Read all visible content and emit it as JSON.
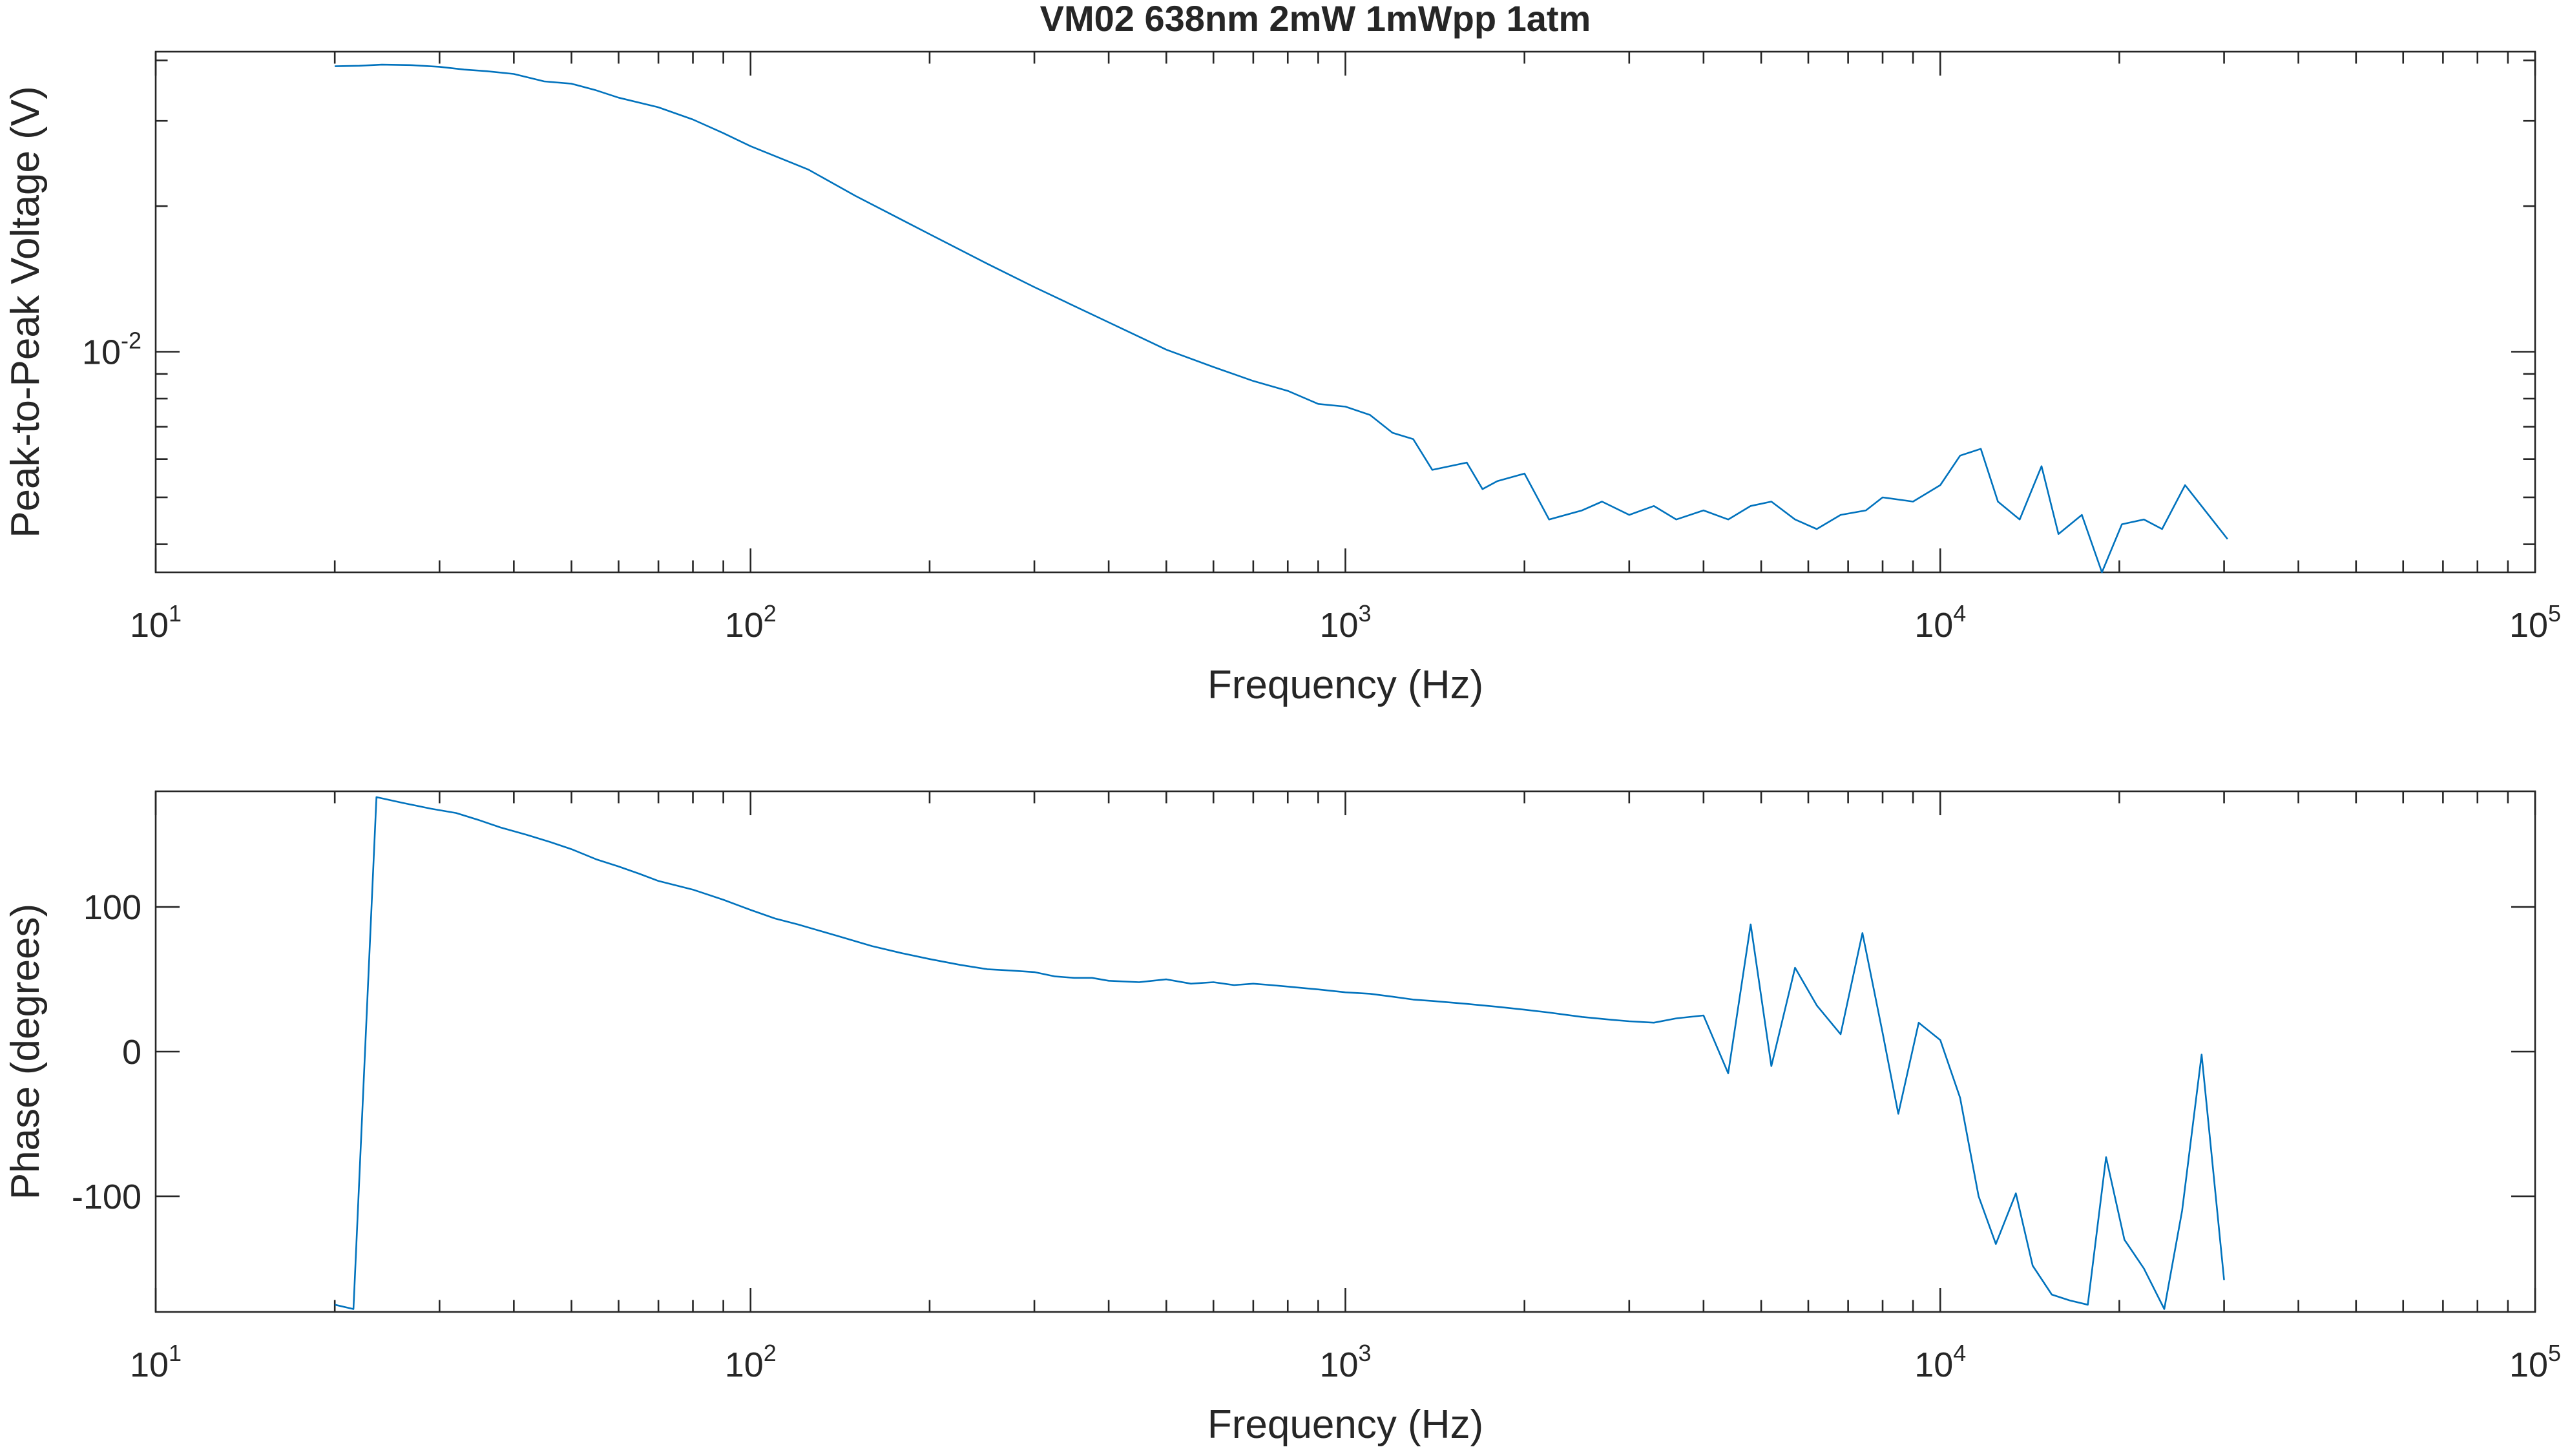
{
  "figure": {
    "title": "VM02 638nm 2mW 1mWpp 1atm"
  },
  "colors": {
    "series": "#0072BD",
    "axes": "#262626",
    "background": "#ffffff"
  },
  "chart_data": [
    {
      "type": "line",
      "xscale": "log",
      "yscale": "log",
      "xlabel": "Frequency (Hz)",
      "ylabel": "Peak-to-Peak Voltage (V)",
      "xlim": [
        10,
        100000
      ],
      "ylim": [
        0.0035,
        0.0417
      ],
      "xticks": [
        {
          "value": 10,
          "base": "10",
          "exp": "1"
        },
        {
          "value": 100,
          "base": "10",
          "exp": "2"
        },
        {
          "value": 1000,
          "base": "10",
          "exp": "3"
        },
        {
          "value": 10000,
          "base": "10",
          "exp": "4"
        },
        {
          "value": 100000,
          "base": "10",
          "exp": "5"
        }
      ],
      "yticks": [
        {
          "value": 0.01,
          "base": "10",
          "exp": "-2"
        }
      ],
      "grid": false,
      "series": [
        {
          "x": [
            20,
            22,
            24,
            27,
            30,
            33,
            36,
            40,
            45,
            50,
            55,
            60,
            70,
            80,
            90,
            100,
            125,
            150,
            200,
            250,
            300,
            400,
            500,
            600,
            700,
            800,
            900,
            1000,
            1100,
            1200,
            1300,
            1400,
            1600,
            1700,
            1800,
            2000,
            2200,
            2500,
            2700,
            3000,
            3300,
            3600,
            4000,
            4400,
            4800,
            5200,
            5700,
            6200,
            6800,
            7500,
            8000,
            9000,
            10000,
            10800,
            11700,
            12500,
            13600,
            14800,
            15800,
            17300,
            18700,
            20200,
            22000,
            23600,
            25800,
            30400
          ],
          "y": [
            0.0389,
            0.039,
            0.0392,
            0.0391,
            0.0388,
            0.0383,
            0.038,
            0.0375,
            0.0362,
            0.0358,
            0.0347,
            0.0335,
            0.032,
            0.0302,
            0.0283,
            0.0266,
            0.0238,
            0.021,
            0.0175,
            0.0152,
            0.0136,
            0.0115,
            0.0101,
            0.0093,
            0.0087,
            0.0083,
            0.0078,
            0.0077,
            0.0074,
            0.0068,
            0.0066,
            0.0057,
            0.0059,
            0.0052,
            0.0054,
            0.0056,
            0.0045,
            0.0047,
            0.0049,
            0.0046,
            0.0048,
            0.0045,
            0.0047,
            0.0045,
            0.0048,
            0.0049,
            0.0045,
            0.0043,
            0.0046,
            0.0047,
            0.005,
            0.0049,
            0.0053,
            0.0061,
            0.0063,
            0.0049,
            0.0045,
            0.0058,
            0.0042,
            0.0046,
            0.0035,
            0.0044,
            0.0045,
            0.0043,
            0.0053,
            0.0041
          ]
        }
      ]
    },
    {
      "type": "line",
      "xscale": "log",
      "yscale": "linear",
      "xlabel": "Frequency (Hz)",
      "ylabel": "Phase (degrees)",
      "xlim": [
        10,
        100000
      ],
      "ylim": [
        -180,
        180
      ],
      "xticks": [
        {
          "value": 10,
          "base": "10",
          "exp": "1"
        },
        {
          "value": 100,
          "base": "10",
          "exp": "2"
        },
        {
          "value": 1000,
          "base": "10",
          "exp": "3"
        },
        {
          "value": 10000,
          "base": "10",
          "exp": "4"
        },
        {
          "value": 100000,
          "base": "10",
          "exp": "5"
        }
      ],
      "yticks": [
        {
          "value": -100,
          "label": "-100"
        },
        {
          "value": 0,
          "label": "0"
        },
        {
          "value": 100,
          "label": "100"
        }
      ],
      "grid": false,
      "series": [
        {
          "x": [
            20,
            21.5,
            23.5,
            26,
            29,
            32,
            35,
            38,
            42,
            46,
            50,
            55,
            60,
            65,
            70,
            80,
            90,
            100,
            110,
            120,
            140,
            160,
            180,
            200,
            225,
            250,
            275,
            300,
            325,
            350,
            375,
            400,
            450,
            500,
            550,
            600,
            650,
            700,
            750,
            800,
            900,
            1000,
            1100,
            1200,
            1300,
            1400,
            1600,
            1800,
            2000,
            2200,
            2500,
            2800,
            3000,
            3300,
            3600,
            4000,
            4400,
            4800,
            5200,
            5700,
            6200,
            6800,
            7400,
            8000,
            8500,
            9200,
            10000,
            10800,
            11600,
            12400,
            13400,
            14300,
            15400,
            16500,
            17700,
            19000,
            20400,
            22000,
            23800,
            25500,
            27500,
            30000
          ],
          "y": [
            -175,
            -178,
            176,
            172,
            168,
            165,
            160,
            155,
            150,
            145,
            140,
            133,
            128,
            123,
            118,
            112,
            105,
            98,
            92,
            88,
            80,
            73,
            68,
            64,
            60,
            57,
            56,
            55,
            52,
            51,
            51,
            49,
            48,
            50,
            47,
            48,
            46,
            47,
            46,
            45,
            43,
            41,
            40,
            38,
            36,
            35,
            33,
            31,
            29,
            27,
            24,
            22,
            21,
            20,
            23,
            25,
            -15,
            88,
            -10,
            58,
            32,
            12,
            82,
            13,
            -43,
            20,
            8,
            -32,
            -100,
            -133,
            -98,
            -148,
            -168,
            -172,
            -175,
            -73,
            -130,
            -150,
            -178,
            -110,
            -2,
            -158
          ]
        }
      ]
    }
  ]
}
